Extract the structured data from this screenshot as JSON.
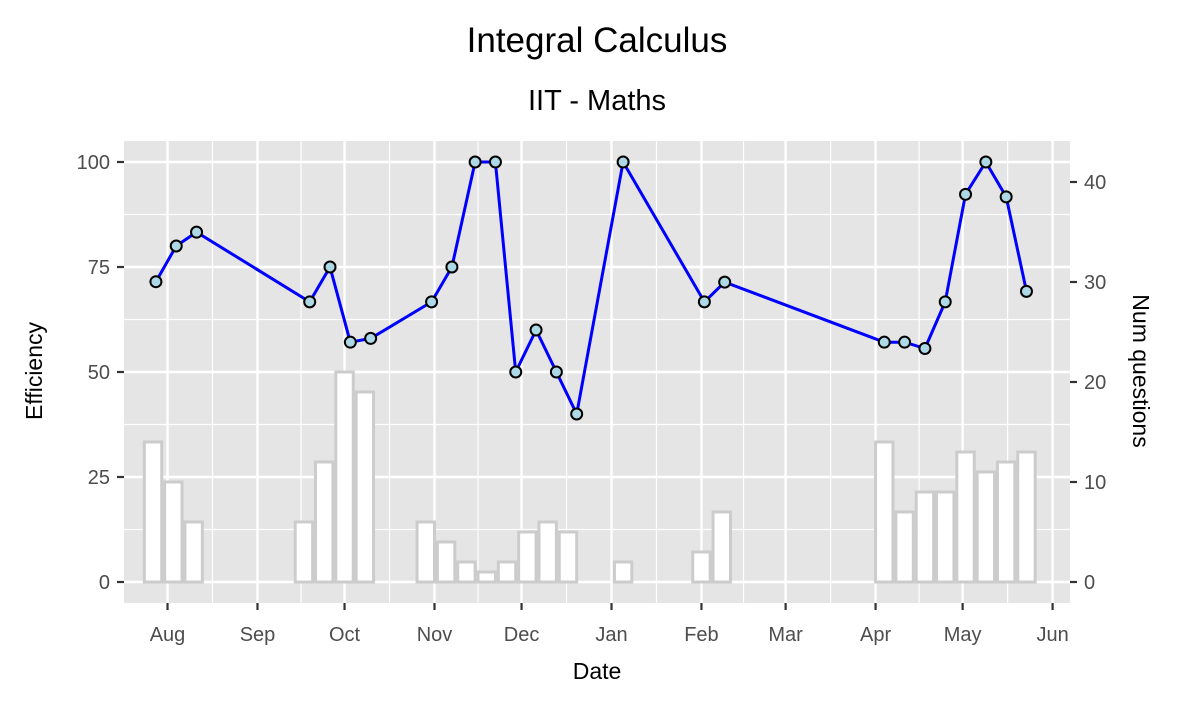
{
  "chart_data": {
    "type": "bar+line",
    "title": "Integral Calculus",
    "subtitle": "IIT - Maths",
    "xlabel": "Date",
    "ylabel_left": "Efficiency",
    "ylabel_right": "Num questions",
    "x_range": [
      "2019-07-17",
      "2020-06-07"
    ],
    "ylim_left": [
      -5,
      105
    ],
    "ylim_right": [
      -2.1,
      44.1
    ],
    "y_ticks_left": [
      0,
      25,
      50,
      75,
      100
    ],
    "y_ticks_right": [
      0,
      10,
      20,
      30,
      40
    ],
    "x_ticks": [
      {
        "date": "2019-08-01",
        "label": "Aug"
      },
      {
        "date": "2019-09-01",
        "label": "Sep"
      },
      {
        "date": "2019-10-01",
        "label": "Oct"
      },
      {
        "date": "2019-11-01",
        "label": "Nov"
      },
      {
        "date": "2019-12-01",
        "label": "Dec"
      },
      {
        "date": "2020-01-01",
        "label": "Jan"
      },
      {
        "date": "2020-02-01",
        "label": "Feb"
      },
      {
        "date": "2020-03-01",
        "label": "Mar"
      },
      {
        "date": "2020-04-01",
        "label": "Apr"
      },
      {
        "date": "2020-05-01",
        "label": "May"
      },
      {
        "date": "2020-06-01",
        "label": "Jun"
      }
    ],
    "bar_width_days": 6,
    "grid": true,
    "colors": {
      "panel": "#e5e5e5",
      "grid": "#ffffff",
      "line": "#0000ff",
      "point_fill": "#add8e6",
      "point_stroke": "#000000",
      "bar_fill": "#ffffff",
      "bar_stroke": "#cccccc"
    },
    "efficiency_series": [
      {
        "date": "2019-07-28",
        "value": 71.5
      },
      {
        "date": "2019-08-04",
        "value": 80
      },
      {
        "date": "2019-08-11",
        "value": 83.3
      },
      {
        "date": "2019-09-19",
        "value": 66.7
      },
      {
        "date": "2019-09-26",
        "value": 75
      },
      {
        "date": "2019-10-03",
        "value": 57.1
      },
      {
        "date": "2019-10-10",
        "value": 58
      },
      {
        "date": "2019-10-31",
        "value": 66.7
      },
      {
        "date": "2019-11-07",
        "value": 75
      },
      {
        "date": "2019-11-15",
        "value": 100
      },
      {
        "date": "2019-11-22",
        "value": 100
      },
      {
        "date": "2019-11-29",
        "value": 50
      },
      {
        "date": "2019-12-06",
        "value": 60
      },
      {
        "date": "2019-12-13",
        "value": 50
      },
      {
        "date": "2019-12-20",
        "value": 40
      },
      {
        "date": "2020-01-05",
        "value": 100
      },
      {
        "date": "2020-02-02",
        "value": 66.7
      },
      {
        "date": "2020-02-09",
        "value": 71.4
      },
      {
        "date": "2020-04-04",
        "value": 57.1
      },
      {
        "date": "2020-04-11",
        "value": 57.1
      },
      {
        "date": "2020-04-18",
        "value": 55.6
      },
      {
        "date": "2020-04-25",
        "value": 66.7
      },
      {
        "date": "2020-05-02",
        "value": 92.3
      },
      {
        "date": "2020-05-09",
        "value": 100
      },
      {
        "date": "2020-05-16",
        "value": 91.7
      },
      {
        "date": "2020-05-23",
        "value": 69.2
      }
    ],
    "questions_series": [
      {
        "date": "2019-07-27",
        "value": 14
      },
      {
        "date": "2019-08-03",
        "value": 10
      },
      {
        "date": "2019-08-10",
        "value": 6
      },
      {
        "date": "2019-09-17",
        "value": 6
      },
      {
        "date": "2019-09-24",
        "value": 12
      },
      {
        "date": "2019-10-01",
        "value": 21
      },
      {
        "date": "2019-10-08",
        "value": 19
      },
      {
        "date": "2019-10-29",
        "value": 6
      },
      {
        "date": "2019-11-05",
        "value": 4
      },
      {
        "date": "2019-11-12",
        "value": 2
      },
      {
        "date": "2019-11-19",
        "value": 1
      },
      {
        "date": "2019-11-26",
        "value": 2
      },
      {
        "date": "2019-12-03",
        "value": 5
      },
      {
        "date": "2019-12-10",
        "value": 6
      },
      {
        "date": "2019-12-17",
        "value": 5
      },
      {
        "date": "2020-01-05",
        "value": 2
      },
      {
        "date": "2020-02-01",
        "value": 3
      },
      {
        "date": "2020-02-08",
        "value": 7
      },
      {
        "date": "2020-04-04",
        "value": 14
      },
      {
        "date": "2020-04-11",
        "value": 7
      },
      {
        "date": "2020-04-18",
        "value": 9
      },
      {
        "date": "2020-04-25",
        "value": 9
      },
      {
        "date": "2020-05-02",
        "value": 13
      },
      {
        "date": "2020-05-09",
        "value": 11
      },
      {
        "date": "2020-05-16",
        "value": 12
      },
      {
        "date": "2020-05-23",
        "value": 13
      }
    ]
  }
}
